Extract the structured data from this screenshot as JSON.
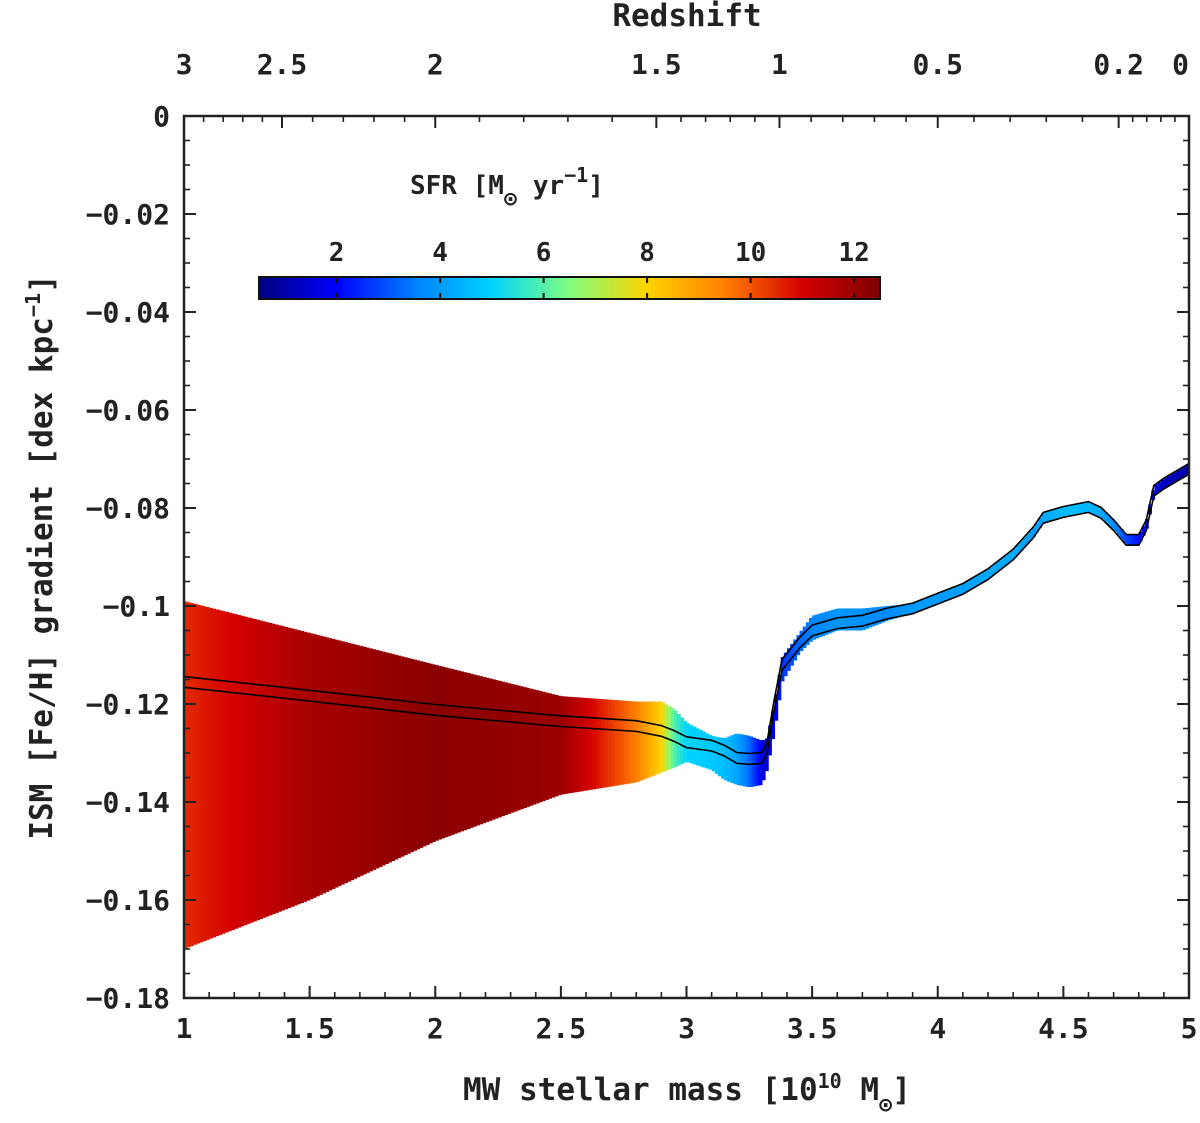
{
  "chart_data": {
    "type": "line",
    "title": "",
    "xlabel": {
      "main": "MW stellar mass [10",
      "exp": "10",
      "unit": " M",
      "sun": "⊙",
      "close": "]"
    },
    "ylabel": {
      "main": "ISM [Fe/H] gradient [dex kpc",
      "exp": "−1",
      "close": "]"
    },
    "top_xlabel": "Redshift",
    "xlim": [
      1,
      5
    ],
    "ylim": [
      -0.18,
      0
    ],
    "x_ticks": [
      1,
      1.5,
      2,
      2.5,
      3,
      3.5,
      4,
      4.5,
      5
    ],
    "x_tick_labels": [
      "1",
      "1.5",
      "2",
      "2.5",
      "3",
      "3.5",
      "4",
      "4.5",
      "5"
    ],
    "y_ticks": [
      0,
      -0.02,
      -0.04,
      -0.06,
      -0.08,
      -0.1,
      -0.12,
      -0.14,
      -0.16,
      -0.18
    ],
    "y_tick_labels": [
      "0",
      "−0.02",
      "−0.04",
      "−0.06",
      "−0.08",
      "−0.1",
      "−0.12",
      "−0.14",
      "−0.16",
      "−0.18"
    ],
    "top_ticks": [
      {
        "label": "3",
        "mass": 1.0
      },
      {
        "label": "2.5",
        "mass": 1.39
      },
      {
        "label": "2",
        "mass": 2.0
      },
      {
        "label": "1.5",
        "mass": 2.88
      },
      {
        "label": "1",
        "mass": 3.37
      },
      {
        "label": "0.5",
        "mass": 4.0
      },
      {
        "label": "0.2",
        "mass": 4.72
      },
      {
        "label": "0",
        "mass": 5.0
      }
    ],
    "colorbar": {
      "label": {
        "main": "SFR [M",
        "sun": "⊙",
        "unit": " yr",
        "exp": "−1",
        "close": "]"
      },
      "range": [
        0.5,
        12.5
      ],
      "ticks": [
        2,
        4,
        6,
        8,
        10,
        12
      ],
      "tick_labels": [
        "2",
        "4",
        "6",
        "8",
        "10",
        "12"
      ],
      "colormap": [
        "#00007f",
        "#0000ff",
        "#007fff",
        "#00d4ff",
        "#7fff7f",
        "#ffd400",
        "#ff7f00",
        "#d40000",
        "#7f0000"
      ]
    },
    "series": [
      {
        "name": "gradient",
        "x": [
          1.0,
          1.5,
          2.0,
          2.5,
          2.8,
          2.9,
          2.95,
          3.0,
          3.1,
          3.15,
          3.2,
          3.25,
          3.3,
          3.32,
          3.35,
          3.38,
          3.45,
          3.5,
          3.6,
          3.7,
          3.8,
          3.9,
          4.0,
          4.1,
          4.2,
          4.3,
          4.38,
          4.42,
          4.5,
          4.6,
          4.65,
          4.7,
          4.75,
          4.8,
          4.83,
          4.86,
          4.9,
          4.95,
          5.0
        ],
        "y": [
          -0.1155,
          -0.1183,
          -0.1212,
          -0.1235,
          -0.1245,
          -0.1255,
          -0.1265,
          -0.1278,
          -0.1285,
          -0.1295,
          -0.131,
          -0.1312,
          -0.131,
          -0.129,
          -0.12,
          -0.112,
          -0.1075,
          -0.105,
          -0.1035,
          -0.103,
          -0.1015,
          -0.1005,
          -0.0985,
          -0.0965,
          -0.0935,
          -0.0895,
          -0.085,
          -0.082,
          -0.0808,
          -0.0798,
          -0.081,
          -0.0835,
          -0.0865,
          -0.0865,
          -0.0835,
          -0.0765,
          -0.075,
          -0.0735,
          -0.072
        ],
        "sfr": [
          10.5,
          11.8,
          12.3,
          12.0,
          9.5,
          8.0,
          6.0,
          5.0,
          4.8,
          4.6,
          4.2,
          3.2,
          1.8,
          1.3,
          1.8,
          2.6,
          3.2,
          3.6,
          3.9,
          3.8,
          3.7,
          4.0,
          4.0,
          4.1,
          4.2,
          4.3,
          4.0,
          4.2,
          4.6,
          4.5,
          4.2,
          3.8,
          2.8,
          2.2,
          1.8,
          1.6,
          1.3,
          1.1,
          1.0
        ],
        "upper": [
          -0.099,
          -0.1055,
          -0.112,
          -0.1184,
          -0.1195,
          -0.1195,
          -0.121,
          -0.1238,
          -0.1265,
          -0.127,
          -0.126,
          -0.1265,
          -0.1275,
          -0.127,
          -0.12,
          -0.1105,
          -0.1055,
          -0.102,
          -0.1005,
          -0.1005,
          -0.1,
          -0.0995,
          -0.0975,
          -0.0955,
          -0.0925,
          -0.0885,
          -0.084,
          -0.081,
          -0.0798,
          -0.0788,
          -0.08,
          -0.0825,
          -0.0855,
          -0.0855,
          -0.0825,
          -0.0755,
          -0.074,
          -0.0725,
          -0.071
        ],
        "lower": [
          -0.17,
          -0.16,
          -0.148,
          -0.1385,
          -0.136,
          -0.134,
          -0.133,
          -0.1318,
          -0.1335,
          -0.1355,
          -0.1365,
          -0.137,
          -0.1365,
          -0.1335,
          -0.1255,
          -0.1155,
          -0.1095,
          -0.107,
          -0.105,
          -0.105,
          -0.103,
          -0.1015,
          -0.0995,
          -0.0975,
          -0.0945,
          -0.0905,
          -0.086,
          -0.083,
          -0.0818,
          -0.0808,
          -0.082,
          -0.0845,
          -0.0875,
          -0.0875,
          -0.0845,
          -0.0775,
          -0.076,
          -0.0745,
          -0.073
        ]
      }
    ]
  }
}
